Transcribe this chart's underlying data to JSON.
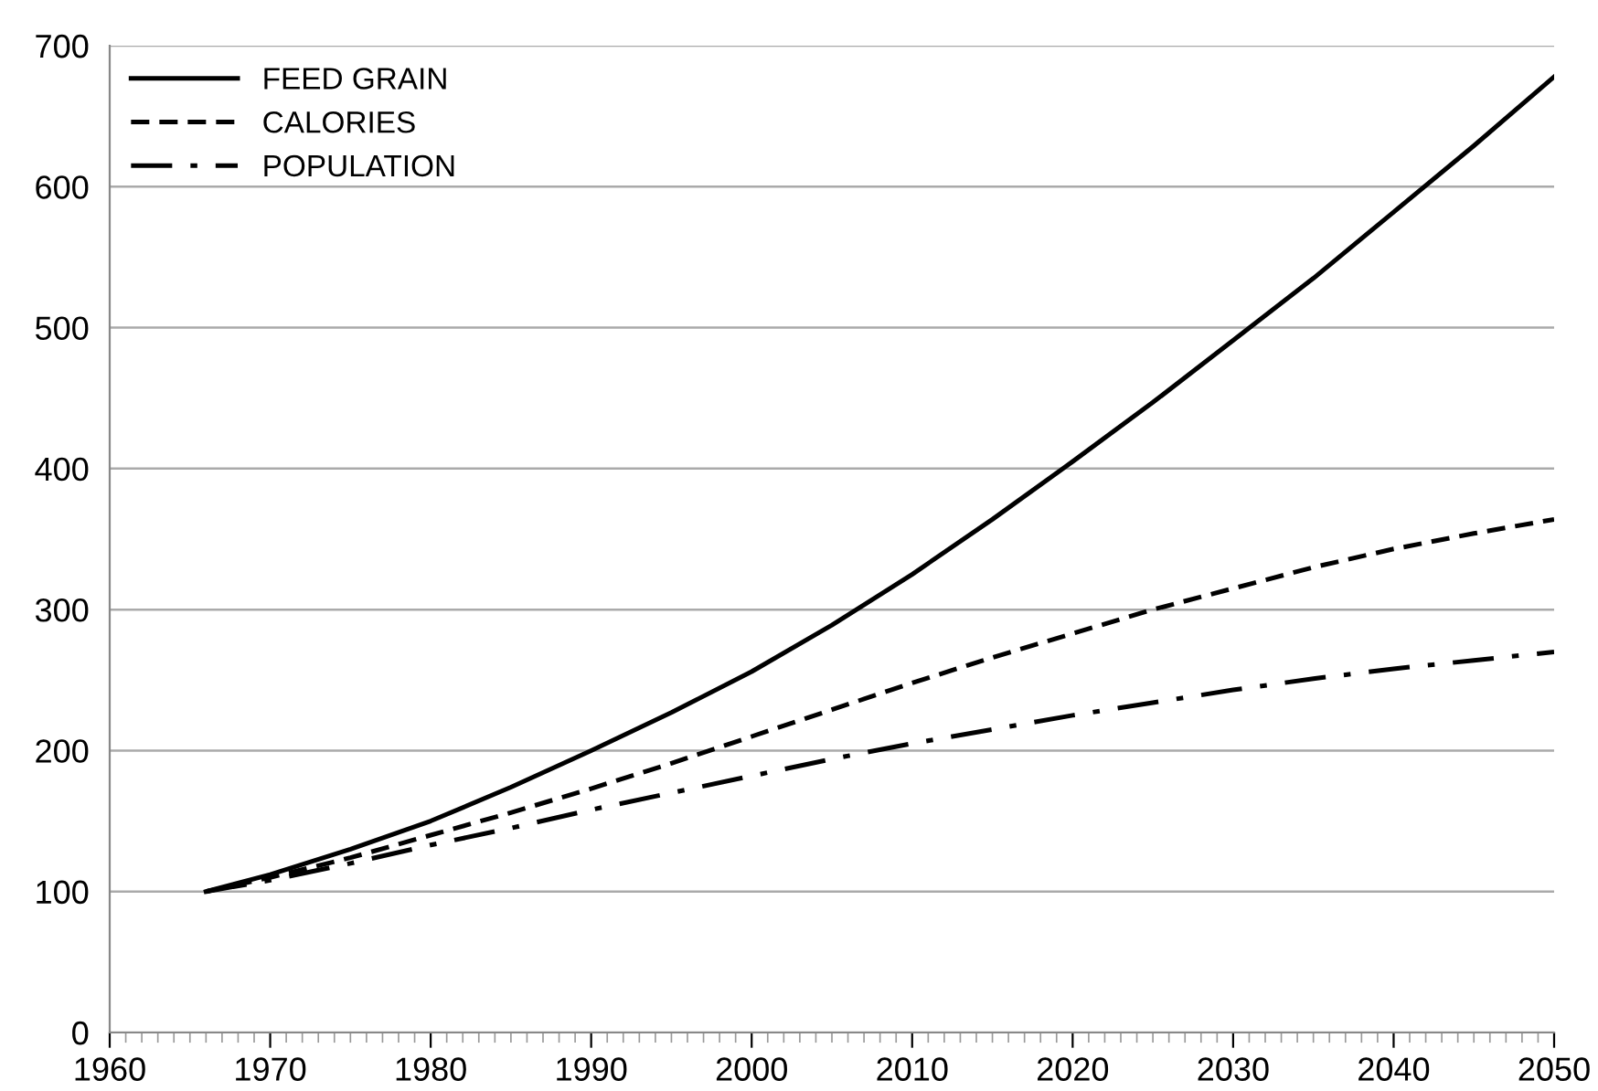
{
  "chart_data": {
    "type": "line",
    "x": [
      1966,
      1970,
      1975,
      1980,
      1985,
      1990,
      1995,
      2000,
      2005,
      2010,
      2015,
      2020,
      2025,
      2030,
      2035,
      2040,
      2045,
      2050
    ],
    "series": [
      {
        "name": "FEED GRAIN",
        "color": "#000000",
        "line_style": "solid",
        "values": [
          100,
          112,
          130,
          150,
          174,
          200,
          227,
          256,
          289,
          325,
          364,
          405,
          447,
          491,
          535,
          582,
          629,
          678
        ]
      },
      {
        "name": "CALORIES",
        "color": "#000000",
        "line_style": "dashed",
        "values": [
          100,
          110,
          124,
          140,
          156,
          173,
          191,
          210,
          229,
          248,
          266,
          283,
          300,
          315,
          330,
          343,
          354,
          364
        ]
      },
      {
        "name": "POPULATION",
        "color": "#000000",
        "line_style": "dashdot",
        "values": [
          100,
          108,
          120,
          133,
          145,
          158,
          170,
          182,
          194,
          205,
          215,
          225,
          234,
          243,
          251,
          258,
          264,
          270
        ]
      }
    ],
    "xlim": [
      1960,
      2050
    ],
    "xticks": [
      1960,
      1970,
      1980,
      1990,
      2000,
      2010,
      2020,
      2030,
      2040,
      2050
    ],
    "ylim": [
      0,
      700
    ],
    "yticks": [
      0,
      100,
      200,
      300,
      400,
      500,
      600,
      700
    ],
    "grid": "y",
    "legend": "top left",
    "marker": "none"
  }
}
